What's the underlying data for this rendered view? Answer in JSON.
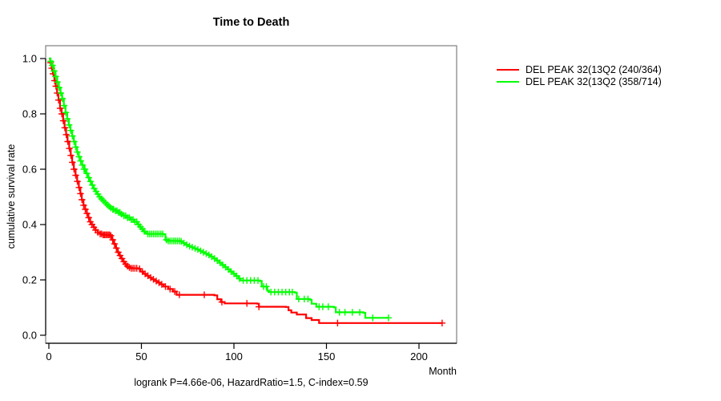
{
  "title": "Time to Death",
  "caption": "logrank P=4.66e-06, HazardRatio=1.5, C-index=0.59",
  "axes": {
    "x": {
      "label": "Month",
      "ticks": [
        "0",
        "50",
        "100",
        "150",
        "200"
      ],
      "tick_values": [
        0,
        50,
        100,
        150,
        200
      ],
      "range": [
        0,
        220
      ]
    },
    "y": {
      "label": "cumulative survival rate",
      "ticks": [
        "0.0",
        "0.2",
        "0.4",
        "0.6",
        "0.8",
        "1.0"
      ],
      "tick_values": [
        0,
        0.2,
        0.4,
        0.6,
        0.8,
        1.0
      ],
      "range": [
        0,
        1
      ]
    }
  },
  "colors": {
    "series1": "#ff0000",
    "series2": "#00ff00",
    "box": "#7f7f7f",
    "axis": "#000000"
  },
  "chart_data": {
    "type": "line",
    "subtype": "kaplan-meier-step",
    "title": "Time to Death",
    "xlabel": "Month",
    "ylabel": "cumulative survival rate",
    "xlim": [
      0,
      220
    ],
    "ylim": [
      0,
      1
    ],
    "grid": false,
    "legend_position": "top-right-outside",
    "series": [
      {
        "name": "DEL PEAK 32(13Q2 (240/364)",
        "color": "#ff0000",
        "points": [
          [
            0,
            1
          ],
          [
            0.8,
            0.985
          ],
          [
            1.5,
            0.965
          ],
          [
            2.2,
            0.945
          ],
          [
            3,
            0.92
          ],
          [
            3.7,
            0.9
          ],
          [
            4.4,
            0.875
          ],
          [
            5.2,
            0.85
          ],
          [
            6,
            0.82
          ],
          [
            6.9,
            0.8
          ],
          [
            7.7,
            0.775
          ],
          [
            8.5,
            0.75
          ],
          [
            9.3,
            0.725
          ],
          [
            10.1,
            0.7
          ],
          [
            11,
            0.675
          ],
          [
            11.8,
            0.65
          ],
          [
            12.6,
            0.625
          ],
          [
            13.5,
            0.6
          ],
          [
            14.4,
            0.578
          ],
          [
            15.3,
            0.556
          ],
          [
            16.2,
            0.534
          ],
          [
            17,
            0.512
          ],
          [
            17.8,
            0.49
          ],
          [
            18.7,
            0.47
          ],
          [
            19.6,
            0.455
          ],
          [
            20.5,
            0.44
          ],
          [
            21.4,
            0.425
          ],
          [
            22.3,
            0.41
          ],
          [
            23.2,
            0.4
          ],
          [
            24.2,
            0.39
          ],
          [
            25.2,
            0.38
          ],
          [
            26.4,
            0.372
          ],
          [
            27.6,
            0.366
          ],
          [
            29,
            0.363
          ],
          [
            33,
            0.36
          ],
          [
            34,
            0.345
          ],
          [
            35,
            0.33
          ],
          [
            36,
            0.315
          ],
          [
            37,
            0.3
          ],
          [
            38,
            0.288
          ],
          [
            39,
            0.277
          ],
          [
            40,
            0.266
          ],
          [
            41,
            0.257
          ],
          [
            42,
            0.25
          ],
          [
            43,
            0.245
          ],
          [
            44,
            0.242
          ],
          [
            48.5,
            0.24
          ],
          [
            49.5,
            0.23
          ],
          [
            51,
            0.222
          ],
          [
            52.5,
            0.215
          ],
          [
            54,
            0.208
          ],
          [
            55.5,
            0.202
          ],
          [
            57,
            0.196
          ],
          [
            58.5,
            0.19
          ],
          [
            60,
            0.184
          ],
          [
            62,
            0.176
          ],
          [
            64.5,
            0.167
          ],
          [
            67,
            0.158
          ],
          [
            69,
            0.146
          ],
          [
            89.5,
            0.144
          ],
          [
            91,
            0.13
          ],
          [
            93,
            0.12
          ],
          [
            95,
            0.115
          ],
          [
            112.5,
            0.114
          ],
          [
            113.5,
            0.103
          ],
          [
            128,
            0.102
          ],
          [
            129.5,
            0.09
          ],
          [
            131,
            0.082
          ],
          [
            134,
            0.075
          ],
          [
            139,
            0.062
          ],
          [
            142,
            0.055
          ],
          [
            146,
            0.044
          ],
          [
            212.5,
            0.044
          ]
        ],
        "censor_months": [
          0.9,
          1.6,
          2.3,
          3.1,
          3.8,
          4.5,
          5.3,
          6.1,
          7,
          7.8,
          8.6,
          9.4,
          10.2,
          11.1,
          11.9,
          12.7,
          13.6,
          14.5,
          15.4,
          16.3,
          17.1,
          17.9,
          18.8,
          19.7,
          20.6,
          21.5,
          22.4,
          23.3,
          24.3,
          25.3,
          26.5,
          27.7,
          28.5,
          29.3,
          30,
          30.7,
          31.4,
          32.1,
          32.8,
          33.5,
          34.5,
          35.5,
          36.5,
          37.5,
          38.5,
          39.5,
          40.5,
          41.5,
          42.5,
          43.5,
          44.5,
          45.5,
          46.5,
          47.5,
          49,
          50.5,
          52,
          53.5,
          55,
          56.5,
          58,
          59.5,
          61,
          63,
          65.5,
          68,
          70.5,
          84,
          93.5,
          107,
          113.5,
          156,
          212.5
        ]
      },
      {
        "name": "DEL PEAK 32(13Q2 (358/714)",
        "color": "#00ff00",
        "points": [
          [
            0,
            1
          ],
          [
            0.9,
            0.99
          ],
          [
            1.8,
            0.975
          ],
          [
            2.7,
            0.955
          ],
          [
            3.6,
            0.935
          ],
          [
            4.5,
            0.915
          ],
          [
            5.4,
            0.895
          ],
          [
            6.3,
            0.875
          ],
          [
            7.2,
            0.855
          ],
          [
            8.1,
            0.83
          ],
          [
            9,
            0.805
          ],
          [
            9.9,
            0.782
          ],
          [
            10.8,
            0.76
          ],
          [
            11.7,
            0.74
          ],
          [
            12.6,
            0.72
          ],
          [
            13.5,
            0.7
          ],
          [
            14.4,
            0.68
          ],
          [
            15.3,
            0.662
          ],
          [
            16.2,
            0.645
          ],
          [
            17.1,
            0.63
          ],
          [
            18,
            0.615
          ],
          [
            19,
            0.6
          ],
          [
            20,
            0.585
          ],
          [
            21,
            0.57
          ],
          [
            22,
            0.556
          ],
          [
            23,
            0.543
          ],
          [
            24,
            0.53
          ],
          [
            25,
            0.52
          ],
          [
            26,
            0.51
          ],
          [
            27,
            0.5
          ],
          [
            28,
            0.493
          ],
          [
            29,
            0.486
          ],
          [
            30,
            0.479
          ],
          [
            31,
            0.472
          ],
          [
            32,
            0.466
          ],
          [
            33,
            0.46
          ],
          [
            34,
            0.455
          ],
          [
            35.5,
            0.45
          ],
          [
            37,
            0.444
          ],
          [
            38.5,
            0.438
          ],
          [
            40,
            0.432
          ],
          [
            42,
            0.425
          ],
          [
            44,
            0.418
          ],
          [
            46,
            0.41
          ],
          [
            48,
            0.4
          ],
          [
            49,
            0.392
          ],
          [
            50,
            0.384
          ],
          [
            51,
            0.376
          ],
          [
            52,
            0.37
          ],
          [
            53,
            0.366
          ],
          [
            62,
            0.365
          ],
          [
            63,
            0.345
          ],
          [
            64,
            0.341
          ],
          [
            71,
            0.339
          ],
          [
            72.5,
            0.333
          ],
          [
            74,
            0.327
          ],
          [
            75.5,
            0.322
          ],
          [
            77,
            0.318
          ],
          [
            78.5,
            0.314
          ],
          [
            80,
            0.31
          ],
          [
            81.5,
            0.305
          ],
          [
            83,
            0.3
          ],
          [
            84.5,
            0.295
          ],
          [
            86,
            0.29
          ],
          [
            87.5,
            0.284
          ],
          [
            89,
            0.277
          ],
          [
            90.5,
            0.27
          ],
          [
            92,
            0.262
          ],
          [
            93.5,
            0.254
          ],
          [
            95,
            0.246
          ],
          [
            96.5,
            0.238
          ],
          [
            98,
            0.23
          ],
          [
            99.5,
            0.222
          ],
          [
            101,
            0.214
          ],
          [
            102.5,
            0.205
          ],
          [
            103.5,
            0.198
          ],
          [
            114,
            0.196
          ],
          [
            115,
            0.176
          ],
          [
            118,
            0.161
          ],
          [
            119,
            0.156
          ],
          [
            133,
            0.154
          ],
          [
            134,
            0.131
          ],
          [
            141,
            0.128
          ],
          [
            142,
            0.114
          ],
          [
            144.5,
            0.103
          ],
          [
            154,
            0.101
          ],
          [
            155,
            0.083
          ],
          [
            170,
            0.081
          ],
          [
            171,
            0.063
          ],
          [
            183.5,
            0.063
          ]
        ],
        "censor_months": [
          1,
          1.9,
          2.8,
          3.7,
          4.6,
          5.5,
          6.4,
          7.3,
          8.2,
          9.1,
          10,
          10.9,
          11.8,
          12.7,
          13.6,
          14.5,
          15.4,
          16.3,
          17.2,
          18.1,
          19,
          19.5,
          20.5,
          21.5,
          22.5,
          23.5,
          24.5,
          25.5,
          26.5,
          27.5,
          28.5,
          29.5,
          30.5,
          31.5,
          32.5,
          33.5,
          34.5,
          35,
          36,
          36.8,
          37.6,
          38.4,
          39.2,
          40.5,
          41.5,
          42.5,
          43.5,
          44.5,
          45.5,
          46.5,
          47.5,
          48.5,
          49.5,
          50.5,
          51.5,
          53.5,
          54.5,
          55.5,
          56.5,
          57.5,
          58.5,
          59.5,
          60.5,
          61.5,
          63.5,
          64.5,
          65.5,
          66.5,
          67.5,
          68.5,
          69.5,
          70.5,
          71.5,
          73,
          74.5,
          76,
          77.5,
          79,
          80.5,
          82,
          83.5,
          85,
          86.5,
          88,
          89.5,
          91,
          92.5,
          94,
          95.5,
          97,
          98.5,
          100,
          101.5,
          103,
          105,
          107,
          109,
          111,
          113,
          116,
          117.5,
          120,
          122,
          124,
          126,
          128,
          130,
          131.5,
          135,
          138,
          140,
          146,
          148,
          151,
          157,
          160,
          164,
          168,
          175,
          183.5
        ]
      }
    ]
  }
}
